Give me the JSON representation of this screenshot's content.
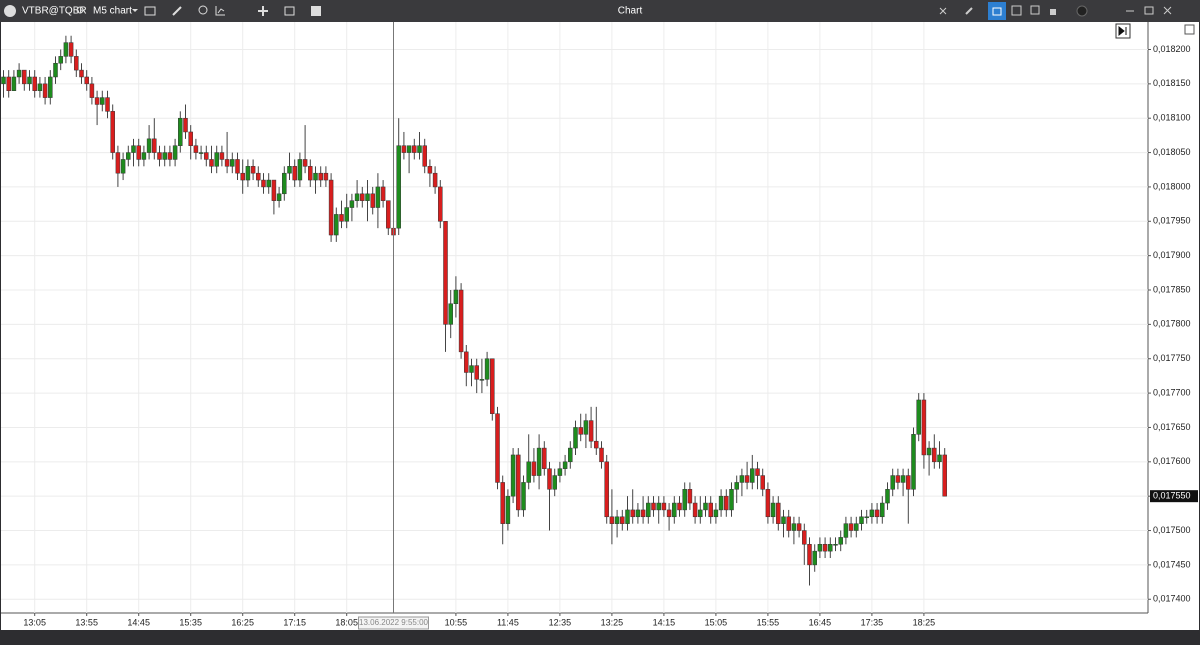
{
  "window": {
    "symbol": "VTBR@TQBR",
    "timeframe": "M5 chart",
    "title": "Chart"
  },
  "chart_data": {
    "type": "candlestick",
    "categories": [
      null,
      null,
      null,
      null,
      null,
      null,
      "13:05",
      null,
      null,
      null,
      null,
      null,
      null,
      null,
      null,
      null,
      "13:55",
      null,
      null,
      null,
      null,
      null,
      null,
      null,
      null,
      null,
      "14:45",
      null,
      null,
      null,
      null,
      null,
      null,
      null,
      null,
      null,
      "15:35",
      null,
      null,
      null,
      null,
      null,
      null,
      null,
      null,
      null,
      "16:25",
      null,
      null,
      null,
      null,
      null,
      null,
      null,
      null,
      null,
      "17:15",
      null,
      null,
      null,
      null,
      null,
      null,
      null,
      null,
      null,
      "18:05",
      null,
      null,
      null,
      null,
      null,
      null,
      null,
      null,
      "13.06.2022 9:55:00",
      null,
      null,
      null,
      null,
      null,
      null,
      null,
      null,
      null,
      null,
      null,
      "10:55",
      null,
      null,
      null,
      null,
      null,
      null,
      null,
      null,
      null,
      "11:45",
      null,
      null,
      null,
      null,
      null,
      null,
      null,
      null,
      null,
      "12:35",
      null,
      null,
      null,
      null,
      null,
      null,
      null,
      null,
      null,
      "13:25",
      null,
      null,
      null,
      null,
      null,
      null,
      null,
      null,
      null,
      "14:15",
      null,
      null,
      null,
      null,
      null,
      null,
      null,
      null,
      null,
      "15:05",
      null,
      null,
      null,
      null,
      null,
      null,
      null,
      null,
      null,
      "15:55",
      null,
      null,
      null,
      null,
      null,
      null,
      null,
      null,
      null,
      "16:45",
      null,
      null,
      null,
      null,
      null,
      null,
      null,
      null,
      null,
      "17:35",
      null,
      null,
      null,
      null,
      null,
      null,
      null,
      null,
      null,
      "18:25",
      null,
      null,
      null,
      null
    ],
    "open": [
      0.01815,
      0.01816,
      0.01814,
      0.01816,
      0.01817,
      0.01815,
      0.01816,
      0.01814,
      0.01815,
      0.01813,
      0.01816,
      0.01818,
      0.01819,
      0.01821,
      0.01819,
      0.01817,
      0.01816,
      0.01815,
      0.01813,
      0.01812,
      0.01813,
      0.01811,
      0.01805,
      0.01802,
      0.01804,
      0.01805,
      0.01806,
      0.01804,
      0.01805,
      0.01807,
      0.01805,
      0.01804,
      0.01805,
      0.01804,
      0.01806,
      0.0181,
      0.01808,
      0.01806,
      0.01805,
      0.01805,
      0.01804,
      0.01803,
      0.01805,
      0.01804,
      0.01803,
      0.01804,
      0.01802,
      0.01801,
      0.01803,
      0.01802,
      0.01801,
      0.018,
      0.01801,
      0.01798,
      0.01799,
      0.01802,
      0.01803,
      0.01801,
      0.01804,
      0.01803,
      0.01801,
      0.01802,
      0.01802,
      0.01801,
      0.01793,
      0.01796,
      0.01795,
      0.01797,
      0.01798,
      0.01799,
      0.01798,
      0.01799,
      0.01797,
      0.018,
      0.01798,
      0.01794,
      0.01794,
      0.01806,
      0.01805,
      0.01806,
      0.01805,
      0.01806,
      0.01803,
      0.01802,
      0.018,
      0.01795,
      0.0178,
      0.01783,
      0.01785,
      0.01776,
      0.01773,
      0.01774,
      0.01772,
      0.01772,
      0.01775,
      0.01767,
      0.01757,
      0.01751,
      0.01755,
      0.01761,
      0.01753,
      0.01757,
      0.0176,
      0.01758,
      0.01762,
      0.01759,
      0.01756,
      0.01758,
      0.01759,
      0.0176,
      0.01762,
      0.01765,
      0.01764,
      0.01766,
      0.01763,
      0.01762,
      0.0176,
      0.01752,
      0.01751,
      0.01752,
      0.01751,
      0.01753,
      0.01752,
      0.01753,
      0.01752,
      0.01754,
      0.01753,
      0.01754,
      0.01753,
      0.01752,
      0.01754,
      0.01753,
      0.01756,
      0.01754,
      0.01752,
      0.01753,
      0.01754,
      0.01752,
      0.01753,
      0.01755,
      0.01753,
      0.01756,
      0.01757,
      0.01758,
      0.01757,
      0.01759,
      0.01758,
      0.01756,
      0.01752,
      0.01754,
      0.01751,
      0.01752,
      0.0175,
      0.01751,
      0.0175,
      0.01748,
      0.01745,
      0.01747,
      0.01748,
      0.01747,
      0.01748,
      0.01748,
      0.01749,
      0.01751,
      0.0175,
      0.01751,
      0.01752,
      0.01752,
      0.01753,
      0.01752,
      0.01754,
      0.01756,
      0.01758,
      0.01757,
      0.01758,
      0.01756,
      0.01764,
      0.01769,
      0.01761,
      0.01762,
      0.0176,
      0.01761
    ],
    "high": [
      0.01817,
      0.01817,
      0.01817,
      0.01818,
      0.01817,
      0.01817,
      0.01817,
      0.01816,
      0.01816,
      0.01817,
      0.01819,
      0.0182,
      0.01822,
      0.01822,
      0.0182,
      0.01818,
      0.01817,
      0.01816,
      0.01814,
      0.01814,
      0.01814,
      0.01812,
      0.01806,
      0.01805,
      0.01806,
      0.01807,
      0.01807,
      0.01806,
      0.01809,
      0.0181,
      0.01806,
      0.01806,
      0.01806,
      0.01807,
      0.01811,
      0.01812,
      0.01809,
      0.01807,
      0.01806,
      0.01806,
      0.01806,
      0.01806,
      0.01806,
      0.01808,
      0.01805,
      0.01805,
      0.01804,
      0.01804,
      0.01804,
      0.01803,
      0.01802,
      0.01802,
      0.01801,
      0.018,
      0.01803,
      0.01805,
      0.01804,
      0.01805,
      0.01809,
      0.01804,
      0.01803,
      0.01803,
      0.01803,
      0.01802,
      0.01797,
      0.01798,
      0.01799,
      0.01799,
      0.01801,
      0.018,
      0.01801,
      0.018,
      0.01802,
      0.01801,
      0.01798,
      0.01794,
      0.0181,
      0.01808,
      0.01806,
      0.01807,
      0.01808,
      0.01807,
      0.01804,
      0.01803,
      0.01801,
      0.01795,
      0.01785,
      0.01787,
      0.01786,
      0.01777,
      0.01775,
      0.01775,
      0.01775,
      0.01776,
      0.01775,
      0.01768,
      0.01758,
      0.01756,
      0.01762,
      0.01762,
      0.01758,
      0.01764,
      0.01762,
      0.01764,
      0.01763,
      0.0176,
      0.01759,
      0.0176,
      0.01761,
      0.01763,
      0.01766,
      0.01767,
      0.01767,
      0.01768,
      0.01768,
      0.01763,
      0.01761,
      0.01756,
      0.01753,
      0.01753,
      0.01755,
      0.01756,
      0.01754,
      0.01755,
      0.01755,
      0.01755,
      0.01755,
      0.01755,
      0.01754,
      0.01755,
      0.01755,
      0.01757,
      0.01757,
      0.01755,
      0.01755,
      0.01755,
      0.01755,
      0.01754,
      0.01756,
      0.01756,
      0.01757,
      0.01758,
      0.01759,
      0.0176,
      0.01761,
      0.0176,
      0.01759,
      0.01757,
      0.01755,
      0.01755,
      0.01753,
      0.01753,
      0.01752,
      0.01752,
      0.01751,
      0.01749,
      0.01748,
      0.01749,
      0.01749,
      0.01749,
      0.01749,
      0.0175,
      0.01752,
      0.01752,
      0.01752,
      0.01753,
      0.01753,
      0.01754,
      0.01754,
      0.01755,
      0.01757,
      0.01759,
      0.01759,
      0.01759,
      0.01759,
      0.01765,
      0.0177,
      0.0177,
      0.01763,
      0.01764,
      0.01763,
      0.01762
    ],
    "low": [
      0.01813,
      0.01813,
      0.01814,
      0.01815,
      0.01814,
      0.01814,
      0.01813,
      0.01813,
      0.01812,
      0.01812,
      0.01815,
      0.01817,
      0.01818,
      0.01818,
      0.01816,
      0.01815,
      0.01814,
      0.01812,
      0.01809,
      0.01811,
      0.0181,
      0.01804,
      0.018,
      0.01801,
      0.01803,
      0.01803,
      0.01803,
      0.01803,
      0.01804,
      0.01804,
      0.01803,
      0.01803,
      0.01803,
      0.01803,
      0.01805,
      0.01807,
      0.01804,
      0.01804,
      0.01804,
      0.01803,
      0.01802,
      0.01802,
      0.01803,
      0.01802,
      0.01802,
      0.01801,
      0.01799,
      0.018,
      0.01801,
      0.018,
      0.01799,
      0.01799,
      0.01796,
      0.01797,
      0.01798,
      0.01801,
      0.018,
      0.018,
      0.01802,
      0.018,
      0.01799,
      0.018,
      0.018,
      0.01792,
      0.01792,
      0.01794,
      0.01794,
      0.01795,
      0.01797,
      0.01797,
      0.01795,
      0.01796,
      0.01794,
      0.01797,
      0.01793,
      0.01793,
      0.01793,
      0.01804,
      0.01802,
      0.01804,
      0.01804,
      0.01802,
      0.018,
      0.01799,
      0.01794,
      0.01776,
      0.01778,
      0.01781,
      0.01775,
      0.01771,
      0.01771,
      0.0177,
      0.0177,
      0.01771,
      0.01766,
      0.01756,
      0.01748,
      0.0175,
      0.01754,
      0.01752,
      0.01752,
      0.01756,
      0.01757,
      0.01756,
      0.01758,
      0.0175,
      0.01755,
      0.01757,
      0.01758,
      0.01759,
      0.01761,
      0.01763,
      0.01762,
      0.01762,
      0.01761,
      0.01759,
      0.01751,
      0.01748,
      0.01749,
      0.0175,
      0.0175,
      0.01751,
      0.01751,
      0.01751,
      0.01751,
      0.01752,
      0.01751,
      0.01752,
      0.0175,
      0.01751,
      0.01752,
      0.01752,
      0.01753,
      0.01751,
      0.01751,
      0.01752,
      0.01751,
      0.01751,
      0.01752,
      0.01752,
      0.01752,
      0.01754,
      0.01755,
      0.01756,
      0.01756,
      0.01756,
      0.01755,
      0.01751,
      0.01751,
      0.0175,
      0.01749,
      0.01749,
      0.01748,
      0.01749,
      0.01745,
      0.01742,
      0.01744,
      0.01746,
      0.01746,
      0.01746,
      0.01747,
      0.01747,
      0.01748,
      0.01749,
      0.01749,
      0.0175,
      0.01751,
      0.01751,
      0.01751,
      0.01751,
      0.01753,
      0.01755,
      0.01756,
      0.01755,
      0.01751,
      0.01755,
      0.01763,
      0.01759,
      0.01758,
      0.01759,
      0.01759,
      0.01755
    ],
    "close": [
      0.01816,
      0.01814,
      0.01816,
      0.01817,
      0.01815,
      0.01816,
      0.01814,
      0.01815,
      0.01813,
      0.01816,
      0.01818,
      0.01819,
      0.01821,
      0.01819,
      0.01817,
      0.01816,
      0.01815,
      0.01813,
      0.01812,
      0.01813,
      0.01811,
      0.01805,
      0.01802,
      0.01804,
      0.01805,
      0.01806,
      0.01804,
      0.01805,
      0.01807,
      0.01805,
      0.01804,
      0.01805,
      0.01804,
      0.01806,
      0.0181,
      0.01808,
      0.01806,
      0.01805,
      0.01805,
      0.01804,
      0.01803,
      0.01805,
      0.01804,
      0.01803,
      0.01804,
      0.01802,
      0.01801,
      0.01803,
      0.01802,
      0.01801,
      0.018,
      0.01801,
      0.01798,
      0.01799,
      0.01802,
      0.01803,
      0.01801,
      0.01804,
      0.01803,
      0.01801,
      0.01802,
      0.01801,
      0.01801,
      0.01793,
      0.01796,
      0.01795,
      0.01797,
      0.01798,
      0.01799,
      0.01798,
      0.01799,
      0.01797,
      0.018,
      0.01798,
      0.01794,
      0.01793,
      0.01806,
      0.01805,
      0.01806,
      0.01805,
      0.01806,
      0.01803,
      0.01802,
      0.018,
      0.01795,
      0.0178,
      0.01783,
      0.01785,
      0.01776,
      0.01773,
      0.01774,
      0.01772,
      0.01772,
      0.01775,
      0.01767,
      0.01757,
      0.01751,
      0.01755,
      0.01761,
      0.01753,
      0.01757,
      0.0176,
      0.01758,
      0.01762,
      0.01759,
      0.01756,
      0.01758,
      0.01759,
      0.0176,
      0.01762,
      0.01765,
      0.01764,
      0.01766,
      0.01763,
      0.01762,
      0.0176,
      0.01752,
      0.01751,
      0.01752,
      0.01751,
      0.01753,
      0.01752,
      0.01753,
      0.01752,
      0.01754,
      0.01753,
      0.01754,
      0.01753,
      0.01752,
      0.01754,
      0.01753,
      0.01756,
      0.01754,
      0.01752,
      0.01753,
      0.01754,
      0.01752,
      0.01753,
      0.01755,
      0.01753,
      0.01756,
      0.01757,
      0.01758,
      0.01757,
      0.01759,
      0.01758,
      0.01756,
      0.01752,
      0.01754,
      0.01751,
      0.01752,
      0.0175,
      0.01751,
      0.0175,
      0.01748,
      0.01745,
      0.01747,
      0.01748,
      0.01747,
      0.01748,
      0.01748,
      0.01749,
      0.01751,
      0.0175,
      0.01751,
      0.01752,
      0.01752,
      0.01753,
      0.01752,
      0.01754,
      0.01756,
      0.01758,
      0.01757,
      0.01758,
      0.01756,
      0.01764,
      0.01769,
      0.01761,
      0.01762,
      0.0176,
      0.01761,
      0.01755
    ],
    "up_color": "#1e8c1e",
    "down_color": "#d81e1e",
    "ylim": [
      0.01738,
      0.01824
    ],
    "yticks": [
      {
        "value": 0.0174,
        "label": "0,017400"
      },
      {
        "value": 0.01745,
        "label": "0,017450"
      },
      {
        "value": 0.0175,
        "label": "0,017500"
      },
      {
        "value": 0.01755,
        "label": "0,017550"
      },
      {
        "value": 0.0176,
        "label": "0,017600"
      },
      {
        "value": 0.01765,
        "label": "0,017650"
      },
      {
        "value": 0.0177,
        "label": "0,017700"
      },
      {
        "value": 0.01775,
        "label": "0,017750"
      },
      {
        "value": 0.0178,
        "label": "0,017800"
      },
      {
        "value": 0.01785,
        "label": "0,017850"
      },
      {
        "value": 0.0179,
        "label": "0,017900"
      },
      {
        "value": 0.01795,
        "label": "0,017950"
      },
      {
        "value": 0.018,
        "label": "0,018000"
      },
      {
        "value": 0.01805,
        "label": "0,018050"
      },
      {
        "value": 0.0181,
        "label": "0,018100"
      },
      {
        "value": 0.01815,
        "label": "0,018150"
      },
      {
        "value": 0.0182,
        "label": "0,018200"
      }
    ],
    "last_price": {
      "value": 0.01755,
      "label": "0,017550"
    },
    "grid": true
  }
}
